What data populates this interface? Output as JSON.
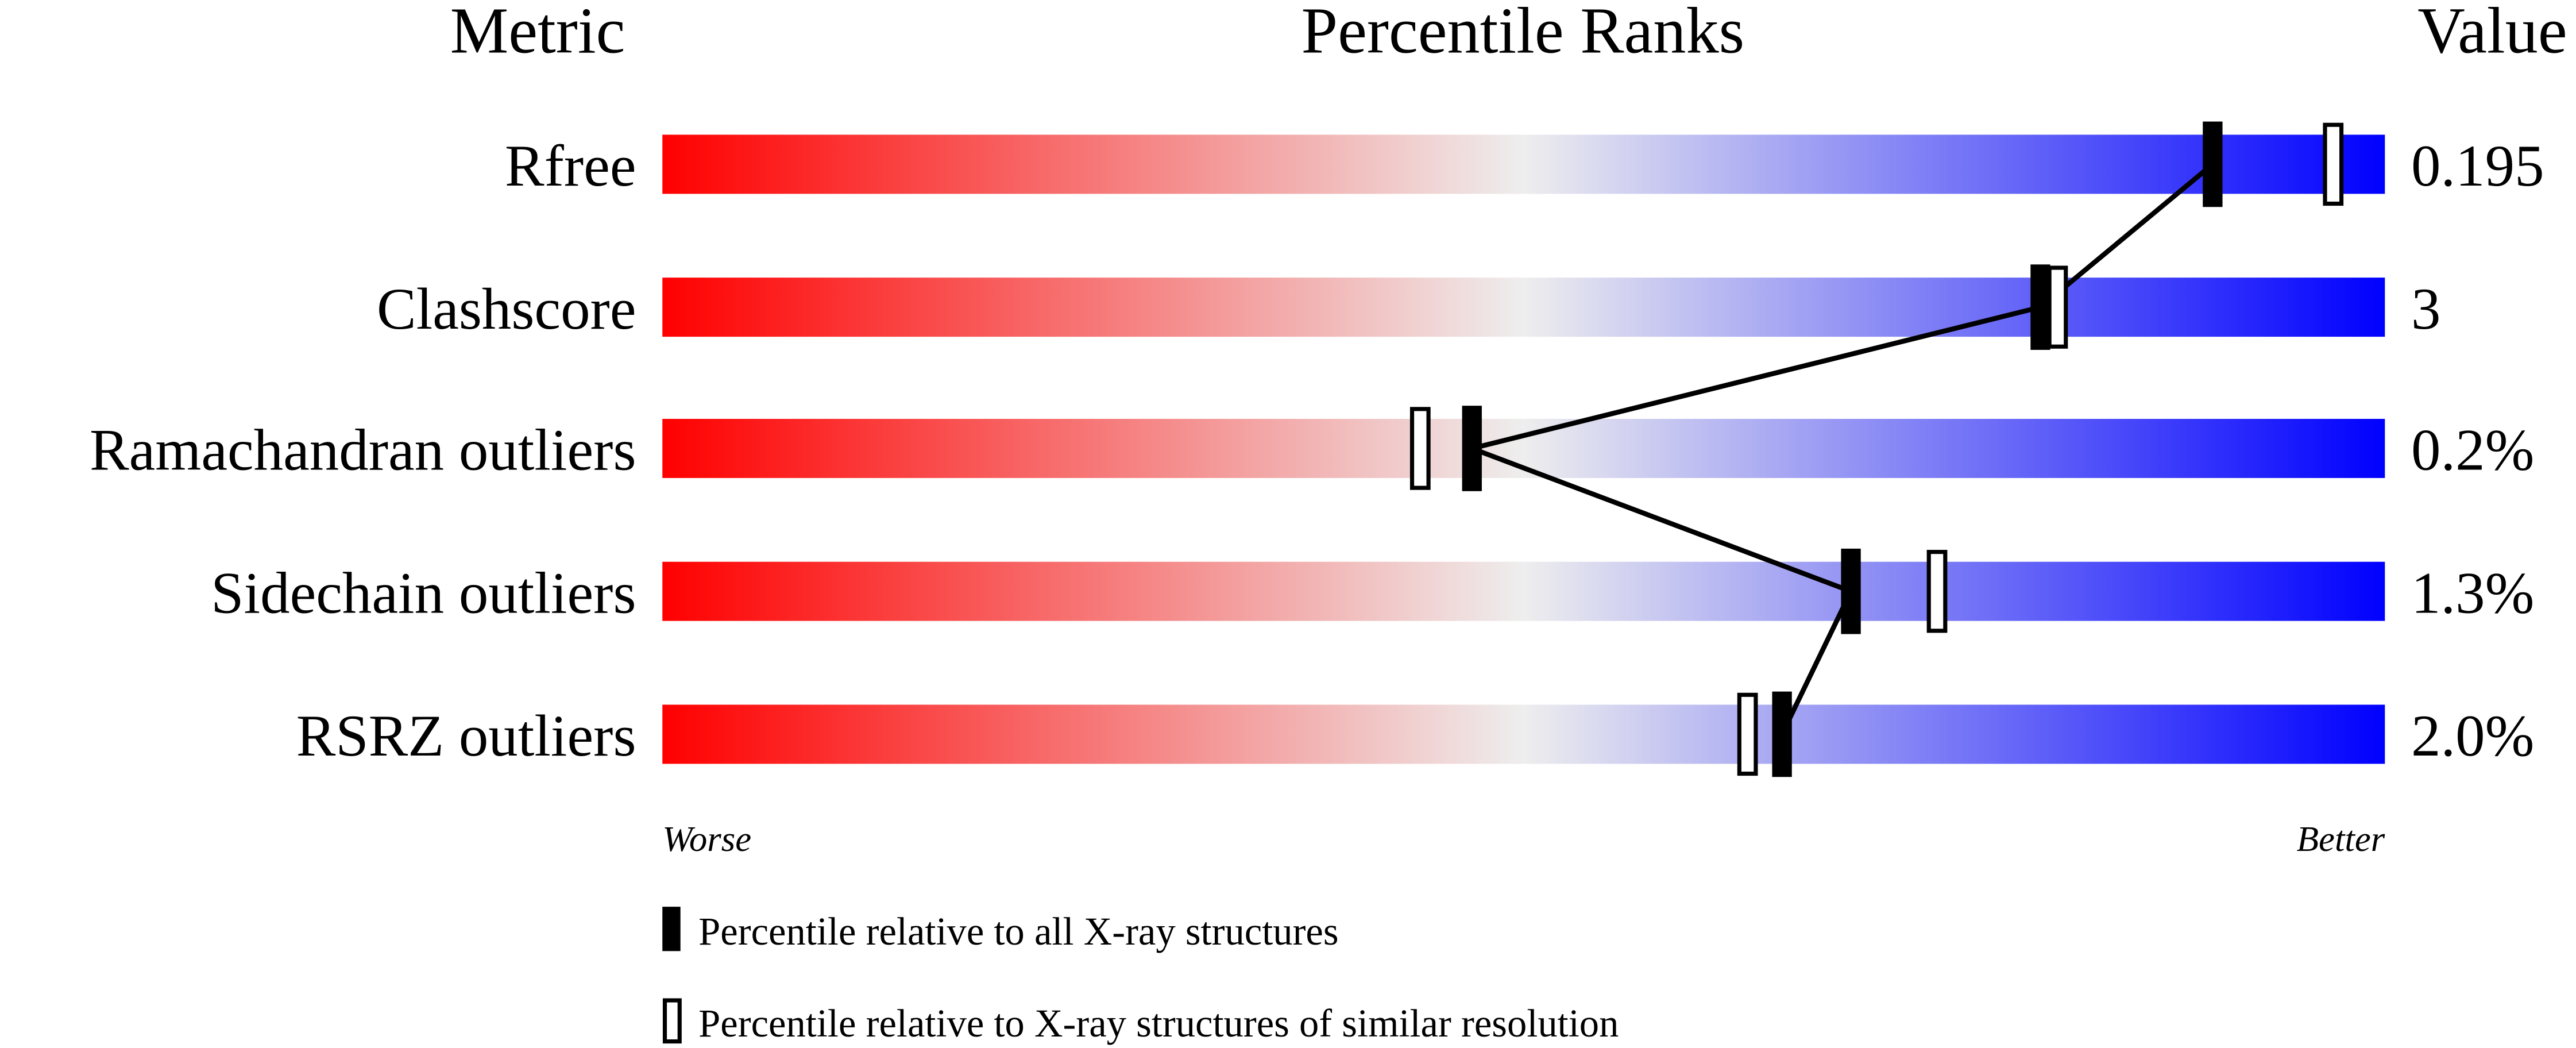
{
  "chart_data": {
    "type": "percentile-slider",
    "headers": {
      "metric": "Metric",
      "ranks": "Percentile Ranks",
      "value": "Value"
    },
    "xlim": [
      0,
      100
    ],
    "axis_labels": {
      "left": "Worse",
      "right": "Better"
    },
    "colors": {
      "worse": "#ff0000",
      "middle": "#eeeeee",
      "better": "#0000ff"
    },
    "rows": [
      {
        "metric": "Rfree",
        "value": "0.195",
        "percentile_all": 90,
        "percentile_similar": 97
      },
      {
        "metric": "Clashscore",
        "value": "3",
        "percentile_all": 80,
        "percentile_similar": 81
      },
      {
        "metric": "Ramachandran outliers",
        "value": "0.2%",
        "percentile_all": 47,
        "percentile_similar": 44
      },
      {
        "metric": "Sidechain outliers",
        "value": "1.3%",
        "percentile_all": 69,
        "percentile_similar": 74
      },
      {
        "metric": "RSRZ outliers",
        "value": "2.0%",
        "percentile_all": 65,
        "percentile_similar": 63
      }
    ],
    "legend": {
      "all": "Percentile relative to all X-ray structures",
      "similar": "Percentile relative to X-ray structures of similar resolution"
    }
  }
}
